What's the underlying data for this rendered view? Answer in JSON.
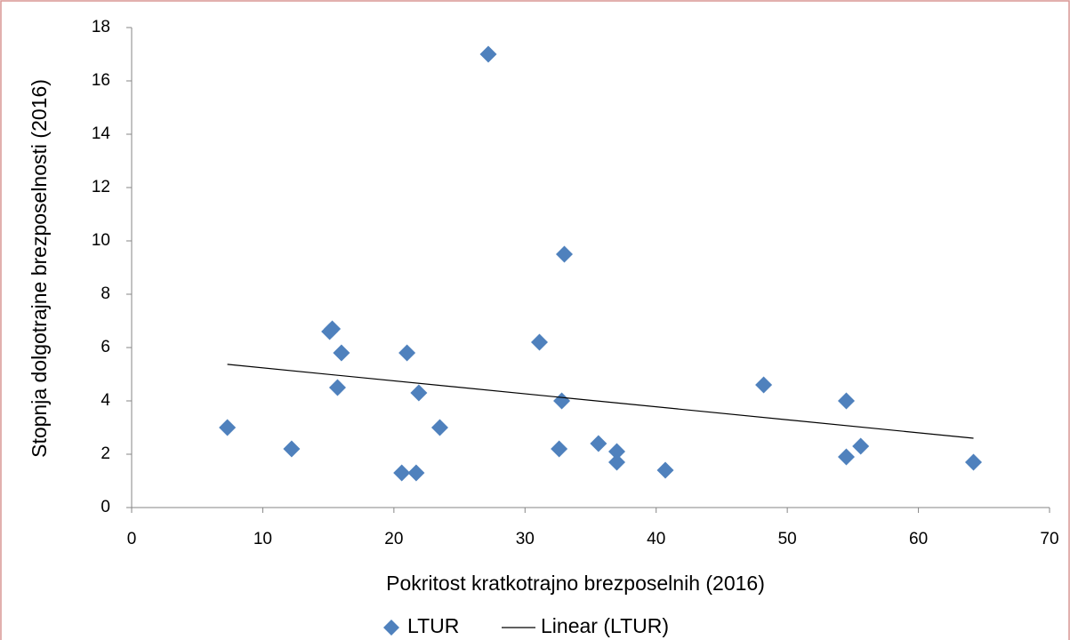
{
  "chart_data": {
    "type": "scatter",
    "xlabel": "Pokritost kratkotrajno brezposelnih (2016)",
    "ylabel": "Stopnja dolgotrajne brezposelnosti (2016)",
    "xlim": [
      0,
      70
    ],
    "xticks": [
      0,
      10,
      20,
      30,
      40,
      50,
      60,
      70
    ],
    "ylim": [
      0,
      18
    ],
    "yticks": [
      0,
      2,
      4,
      6,
      8,
      10,
      12,
      14,
      16,
      18
    ],
    "grid": false,
    "legend": "bottom",
    "series": [
      {
        "name": "LTUR",
        "color": "#4f81bd",
        "x": [
          7.3,
          12.2,
          15.1,
          15.3,
          16.0,
          15.7,
          20.6,
          21.7,
          21.0,
          21.9,
          23.5,
          27.2,
          31.1,
          33.0,
          32.8,
          32.6,
          35.6,
          37.0,
          37.0,
          40.7,
          48.2,
          54.5,
          54.5,
          55.6,
          64.2
        ],
        "values": [
          3.0,
          2.2,
          6.6,
          6.7,
          5.8,
          4.5,
          1.3,
          1.3,
          5.8,
          4.3,
          3.0,
          17.0,
          6.2,
          9.5,
          4.0,
          2.2,
          2.4,
          2.1,
          1.7,
          1.4,
          4.6,
          4.0,
          1.9,
          2.3,
          1.7
        ]
      },
      {
        "name": "Linear (LTUR)",
        "color": "#000000",
        "x": [
          7.3,
          64.2
        ],
        "values": [
          5.37,
          2.6
        ]
      }
    ]
  }
}
